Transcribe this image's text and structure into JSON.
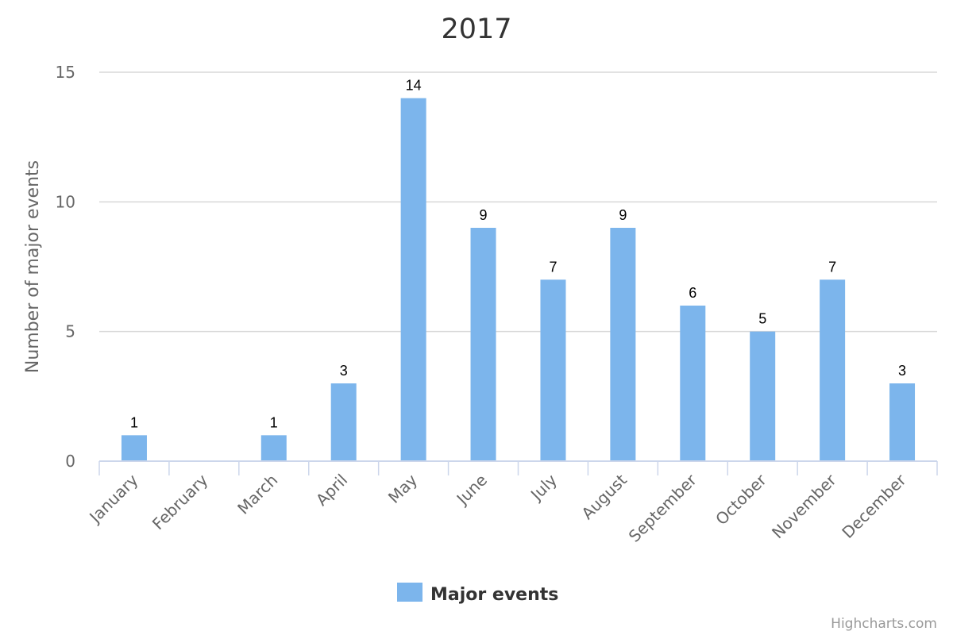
{
  "chart_data": {
    "type": "bar",
    "title": "2017",
    "xlabel": "",
    "ylabel": "Number of major events",
    "ylim": [
      0,
      15
    ],
    "yticks": [
      0,
      5,
      10,
      15
    ],
    "grid": true,
    "categories": [
      "January",
      "February",
      "March",
      "April",
      "May",
      "June",
      "July",
      "August",
      "September",
      "October",
      "November",
      "December"
    ],
    "series": [
      {
        "name": "Major events",
        "values": [
          1,
          0,
          1,
          3,
          14,
          9,
          7,
          9,
          6,
          5,
          7,
          3
        ],
        "color": "#7cb5ec"
      }
    ],
    "data_labels": [
      1,
      null,
      1,
      3,
      14,
      9,
      7,
      9,
      6,
      5,
      7,
      3
    ],
    "legend_position": "bottom-center"
  },
  "credits": "Highcharts.com",
  "colors": {
    "bar": "#7cb5ec",
    "grid": "#d8d8d8",
    "axis": "#ccd6eb"
  }
}
